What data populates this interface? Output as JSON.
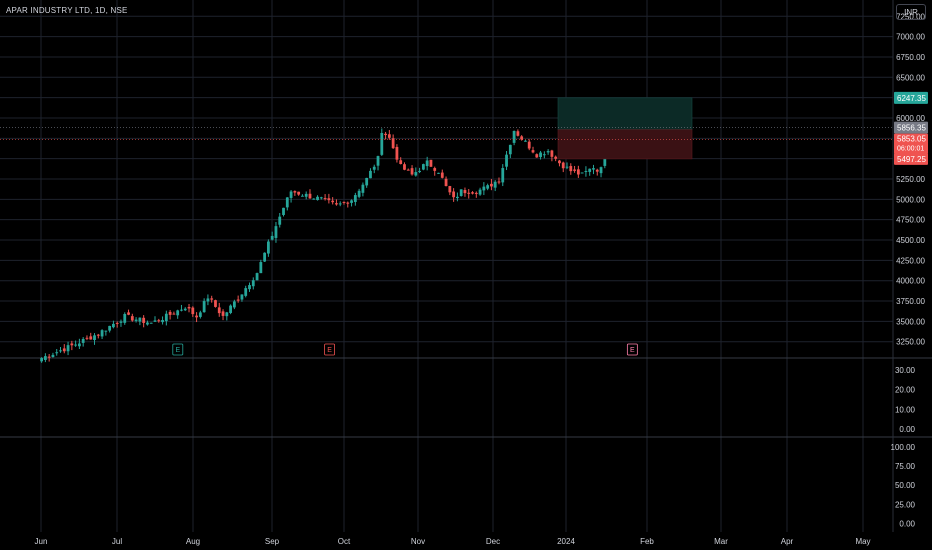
{
  "header": {
    "title": "APAR INDUSTRY LTD, 1D, NSE",
    "currency": "INR"
  },
  "colors": {
    "up": "#26a69a",
    "down": "#ef5350",
    "bg": "#000000",
    "grid": "#1e222d",
    "text": "#d1d4dc",
    "target_zone": "#0c2a26",
    "stop_zone": "#3a1114"
  },
  "chart_data": {
    "type": "candlestick",
    "price_axis": {
      "ticks": [
        "7250.00",
        "7000.00",
        "6750.00",
        "6500.00",
        "6250.00",
        "6000.00",
        "5750.00",
        "5500.00",
        "5250.00",
        "5000.00",
        "4750.00",
        "4500.00",
        "4250.00",
        "4000.00",
        "3750.00",
        "3500.00",
        "3250.00"
      ],
      "range": [
        3050,
        7450
      ]
    },
    "time_axis": {
      "labels": [
        "Jun",
        "Jul",
        "Aug",
        "Sep",
        "Oct",
        "Nov",
        "Dec",
        "2024",
        "Feb",
        "Mar",
        "Apr",
        "May"
      ]
    },
    "price_labels": {
      "target": "6247.35",
      "last_close": "5856.35",
      "current": "5853.05",
      "countdown": "06:00:01",
      "stop": "5497.25"
    },
    "events": [
      {
        "label": "E",
        "month": "Aug",
        "day": 0.8
      },
      {
        "label": "E",
        "month": "Oct",
        "day": 0.8
      },
      {
        "label": "E",
        "month": "2024",
        "day": 0.95
      }
    ],
    "position": {
      "entry": 5856.35,
      "target": 6247.35,
      "stop": 5497.25
    },
    "anchors": [
      [
        0,
        3050
      ],
      [
        8,
        3200
      ],
      [
        15,
        3350
      ],
      [
        22,
        3560
      ],
      [
        29,
        3480
      ],
      [
        33,
        3560
      ],
      [
        38,
        3680
      ],
      [
        41,
        3560
      ],
      [
        44,
        3800
      ],
      [
        48,
        3560
      ],
      [
        53,
        3850
      ],
      [
        57,
        4100
      ],
      [
        60,
        4450
      ],
      [
        64,
        4900
      ],
      [
        66,
        5100
      ],
      [
        70,
        5050
      ],
      [
        74,
        5000
      ],
      [
        78,
        4920
      ],
      [
        82,
        5000
      ],
      [
        86,
        5250
      ],
      [
        89,
        5500
      ],
      [
        90,
        5850
      ],
      [
        92,
        5750
      ],
      [
        95,
        5400
      ],
      [
        98,
        5300
      ],
      [
        102,
        5450
      ],
      [
        105,
        5350
      ],
      [
        107,
        5150
      ],
      [
        109,
        5000
      ],
      [
        111,
        5100
      ],
      [
        115,
        5100
      ],
      [
        118,
        5150
      ],
      [
        121,
        5250
      ],
      [
        123,
        5550
      ],
      [
        125,
        5850
      ],
      [
        128,
        5700
      ],
      [
        131,
        5550
      ],
      [
        134,
        5600
      ],
      [
        137,
        5450
      ],
      [
        140,
        5350
      ],
      [
        143,
        5300
      ],
      [
        146,
        5400
      ],
      [
        147,
        5350
      ],
      [
        149,
        5500
      ],
      [
        151,
        5850
      ]
    ],
    "indicators": [
      {
        "name": "volume",
        "ticks": [
          "30.00",
          "20.00",
          "10.00",
          "0.00"
        ]
      },
      {
        "name": "oscillator",
        "ticks": [
          "100.00",
          "75.00",
          "50.00",
          "25.00",
          "0.00"
        ]
      }
    ]
  }
}
